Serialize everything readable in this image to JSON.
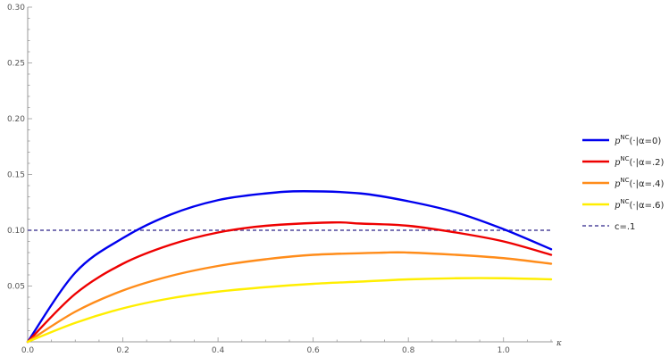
{
  "chart_data": {
    "type": "line",
    "xlabel": "κ",
    "ylabel": "",
    "xlim": [
      0,
      1.1
    ],
    "ylim": [
      0,
      0.3
    ],
    "x_ticks": [
      "0.0",
      "0.2",
      "0.4",
      "0.6",
      "0.8",
      "1.0"
    ],
    "y_ticks": [
      "0.05",
      "0.10",
      "0.15",
      "0.20",
      "0.25",
      "0.30"
    ],
    "legend_position": "right",
    "series": [
      {
        "name": "p^NC(·|α=0)",
        "color": "#0000ee",
        "x": [
          0,
          0.1,
          0.2,
          0.3,
          0.4,
          0.5,
          0.58,
          0.7,
          0.8,
          0.9,
          1.0,
          1.1
        ],
        "y": [
          0,
          0.062,
          0.093,
          0.114,
          0.127,
          0.133,
          0.135,
          0.133,
          0.126,
          0.116,
          0.101,
          0.083
        ]
      },
      {
        "name": "p^NC(·|α=.2)",
        "color": "#ee0000",
        "x": [
          0,
          0.1,
          0.2,
          0.3,
          0.4,
          0.5,
          0.64,
          0.7,
          0.8,
          0.9,
          1.0,
          1.1
        ],
        "y": [
          0,
          0.043,
          0.07,
          0.087,
          0.098,
          0.104,
          0.107,
          0.106,
          0.104,
          0.098,
          0.09,
          0.078
        ]
      },
      {
        "name": "p^NC(·|α=.4)",
        "color": "#ff8c1a",
        "x": [
          0,
          0.1,
          0.2,
          0.3,
          0.4,
          0.5,
          0.6,
          0.75,
          0.8,
          0.9,
          1.0,
          1.1
        ],
        "y": [
          0,
          0.027,
          0.046,
          0.059,
          0.068,
          0.074,
          0.078,
          0.08,
          0.08,
          0.078,
          0.075,
          0.07
        ]
      },
      {
        "name": "p^NC(·|α=.6)",
        "color": "#ffee00",
        "x": [
          0,
          0.1,
          0.2,
          0.3,
          0.4,
          0.5,
          0.6,
          0.7,
          0.8,
          0.9,
          1.0,
          1.1
        ],
        "y": [
          0,
          0.017,
          0.03,
          0.039,
          0.045,
          0.049,
          0.052,
          0.054,
          0.056,
          0.057,
          0.057,
          0.056
        ]
      }
    ],
    "reference_line": {
      "name": "c=.1",
      "y": 0.1,
      "color": "#7b75b5",
      "style": "dashed"
    }
  },
  "legend": [
    {
      "sup": "NC",
      "rest": "(·|α=0)",
      "color": "#0000ee",
      "dashed": false
    },
    {
      "sup": "NC",
      "rest": "(·|α=.2)",
      "color": "#ee0000",
      "dashed": false
    },
    {
      "sup": "NC",
      "rest": "(·|α=.4)",
      "color": "#ff8c1a",
      "dashed": false
    },
    {
      "sup": "NC",
      "rest": "(·|α=.6)",
      "color": "#ffee00",
      "dashed": false
    },
    {
      "plain": "c=.1",
      "color": "#7b75b5",
      "dashed": true
    }
  ],
  "legend_symbol": "p"
}
